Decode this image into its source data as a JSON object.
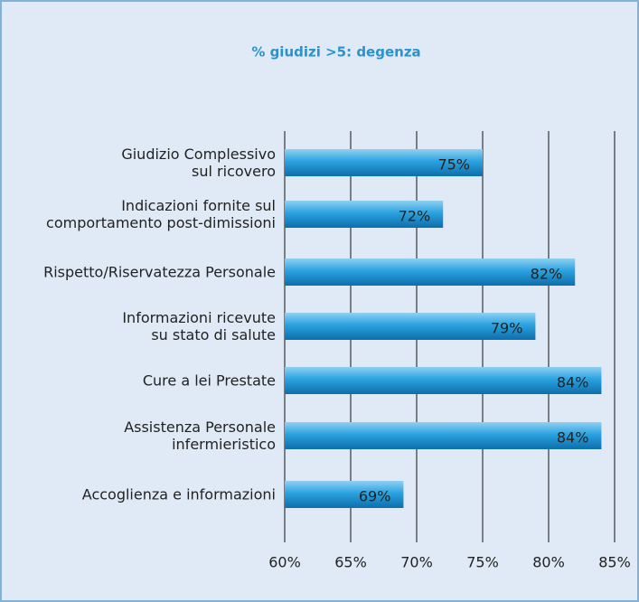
{
  "chart_data": {
    "type": "barh",
    "title": "% giudizi >5: degenza",
    "categories": [
      "Giudizio Complessivo\nsul ricovero",
      "Indicazioni fornite sul\ncomportamento post-dimissioni",
      "Rispetto/Riservatezza Personale",
      "Informazioni ricevute\nsu stato di salute",
      "Cure a lei Prestate",
      "Assistenza Personale\ninfermieristico",
      "Accoglienza e informazioni"
    ],
    "values": [
      75,
      72,
      82,
      79,
      84,
      84,
      69
    ],
    "value_labels": [
      "75%",
      "72%",
      "82%",
      "79%",
      "84%",
      "84%",
      "69%"
    ],
    "color": "#1a8fd0",
    "xlim": [
      60,
      85
    ],
    "xticks": [
      {
        "value": 60,
        "label": "60%"
      },
      {
        "value": 65,
        "label": "65%"
      },
      {
        "value": 70,
        "label": "70%"
      },
      {
        "value": 75,
        "label": "75%"
      },
      {
        "value": 80,
        "label": "80%"
      },
      {
        "value": 85,
        "label": "85%"
      }
    ],
    "grid": true
  }
}
